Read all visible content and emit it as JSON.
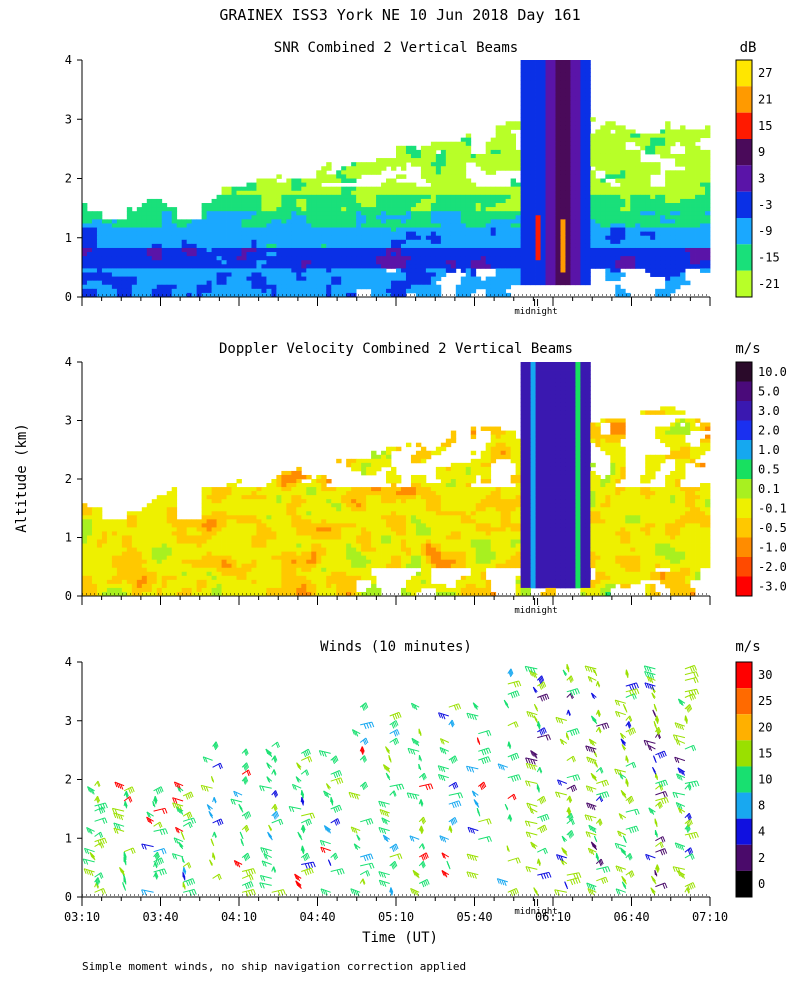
{
  "figure": {
    "title": "GRAINEX ISS3 York NE  10 Jun 2018 Day 161",
    "ylabel": "Altitude (km)",
    "xlabel": "Time (UT)",
    "footnote": "Simple moment winds, no ship navigation correction applied",
    "midnight_label": "midnight",
    "white": "#ffffff"
  },
  "chart_data": [
    {
      "type": "heatmap",
      "title": "SNR Combined 2 Vertical Beams",
      "units": "dB",
      "ylim": [
        0,
        4
      ],
      "yticks": [
        "0",
        "1",
        "2",
        "3",
        "4"
      ],
      "x_range": [
        "03:10",
        "07:10"
      ],
      "colorbar": {
        "labels": [
          "27",
          "21",
          "15",
          "9",
          "3",
          "-3",
          "-9",
          "-15",
          "-21"
        ],
        "colors": [
          "#ffe600",
          "#ff9a00",
          "#ff1a00",
          "#4a0a5a",
          "#5a14a8",
          "#0a30e6",
          "#1aa8ff",
          "#19e07a",
          "#b8ff28"
        ]
      }
    },
    {
      "type": "heatmap",
      "title": "Doppler Velocity Combined 2 Vertical Beams",
      "units": "m/s",
      "ylim": [
        0,
        4
      ],
      "yticks": [
        "0",
        "1",
        "2",
        "3",
        "4"
      ],
      "x_range": [
        "03:10",
        "07:10"
      ],
      "colorbar": {
        "labels": [
          "10.0",
          "5.0",
          "3.0",
          "2.0",
          "1.0",
          "0.5",
          "0.1",
          "-0.1",
          "-0.5",
          "-1.0",
          "-2.0",
          "-3.0"
        ],
        "colors": [
          "#2a0a2a",
          "#4a0a7a",
          "#3a18b0",
          "#1a30f0",
          "#15a8f0",
          "#18e060",
          "#a8f020",
          "#eef000",
          "#ffc800",
          "#ff8c00",
          "#ff4a00",
          "#ff0000"
        ]
      }
    },
    {
      "type": "barbs",
      "title": "Winds (10 minutes)",
      "units": "m/s",
      "ylim": [
        0,
        4
      ],
      "yticks": [
        "0",
        "1",
        "2",
        "3",
        "4"
      ],
      "xticks": [
        "03:10",
        "03:40",
        "04:10",
        "04:40",
        "05:10",
        "05:40",
        "06:10",
        "06:40",
        "07:10"
      ],
      "colorbar": {
        "labels": [
          "30",
          "25",
          "20",
          "15",
          "10",
          "8",
          "4",
          "2",
          "0"
        ],
        "colors": [
          "#ff0000",
          "#ff6a00",
          "#ffb000",
          "#9ae000",
          "#18e070",
          "#18a8f0",
          "#1010e0",
          "#4a0a6a",
          "#000000"
        ]
      }
    }
  ]
}
